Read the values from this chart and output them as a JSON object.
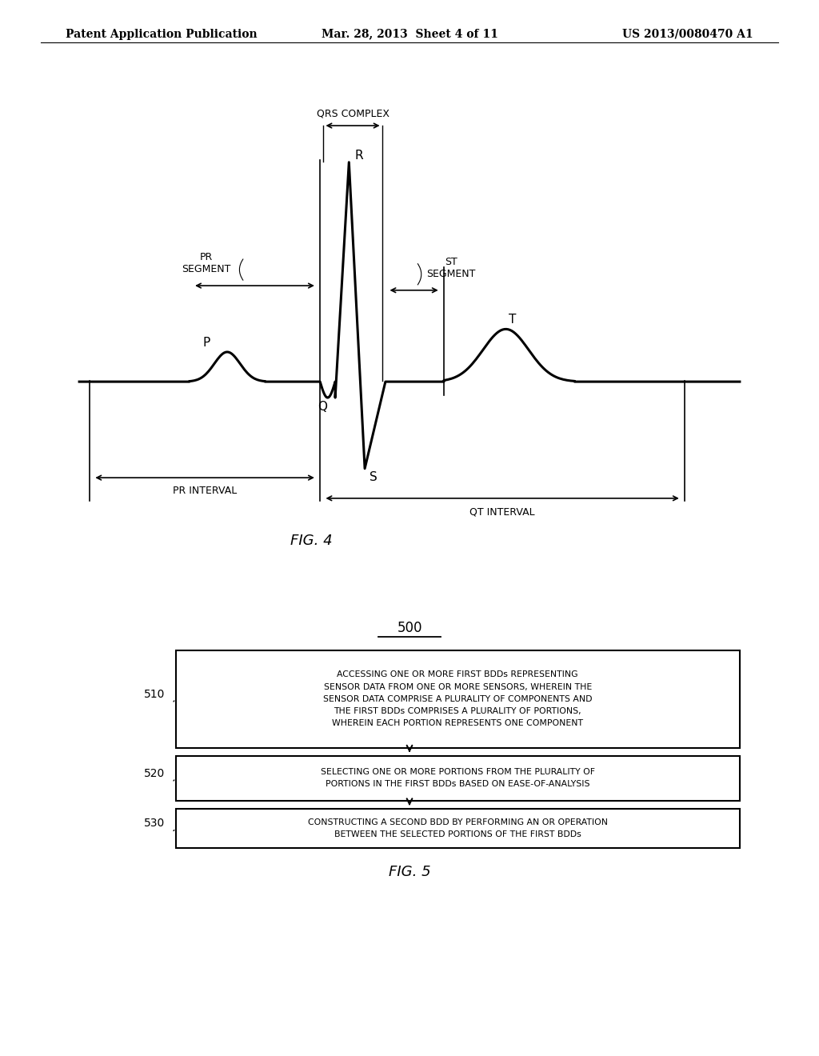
{
  "header_left": "Patent Application Publication",
  "header_mid": "Mar. 28, 2013  Sheet 4 of 11",
  "header_right": "US 2013/0080470 A1",
  "header_fontsize": 10,
  "fig4_label": "FIG. 4",
  "fig5_label": "FIG. 5",
  "fig5_number": "500",
  "flowchart": {
    "box510_text": "ACCESSING ONE OR MORE FIRST BDDs REPRESENTING\nSENSOR DATA FROM ONE OR MORE SENSORS, WHEREIN THE\nSENSOR DATA COMPRISE A PLURALITY OF COMPONENTS AND\nTHE FIRST BDDs COMPRISES A PLURALITY OF PORTIONS,\nWHEREIN EACH PORTION REPRESENTS ONE COMPONENT",
    "box520_text": "SELECTING ONE OR MORE PORTIONS FROM THE PLURALITY OF\nPORTIONS IN THE FIRST BDDs BASED ON EASE-OF-ANALYSIS",
    "box530_text": "CONSTRUCTING A SECOND BDD BY PERFORMING AN OR OPERATION\nBETWEEN THE SELECTED PORTIONS OF THE FIRST BDDs",
    "label510": "510",
    "label520": "520",
    "label530": "530"
  },
  "background_color": "#ffffff",
  "line_color": "#000000",
  "text_color": "#000000"
}
